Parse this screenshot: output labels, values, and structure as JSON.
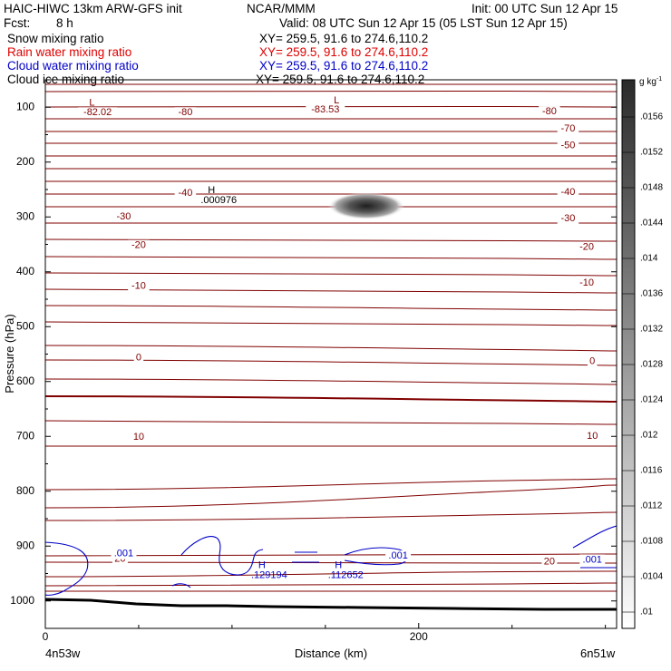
{
  "header": {
    "title": "HAIC-HIWC 13km ARW-GFS init",
    "org": "NCAR/MMM",
    "init": "Init: 00 UTC Sun 12 Apr 15",
    "fcst_label": "Fcst:",
    "fcst_value": "8 h",
    "valid": "Valid: 08 UTC Sun 12 Apr 15 (05 LST Sun 12 Apr 15)"
  },
  "fields": [
    {
      "name": "Snow mixing ratio",
      "xy": "XY= 259.5, 91.6 to 274.6,110.2",
      "color": "#000000"
    },
    {
      "name": "Rain water mixing ratio",
      "xy": "XY= 259.5, 91.6 to 274.6,110.2",
      "color": "#e00000"
    },
    {
      "name": "Cloud water mixing ratio",
      "xy": "XY= 259.5, 91.6 to 274.6,110.2",
      "color": "#0000c8"
    },
    {
      "name": "Cloud ice mixing ratio",
      "xy": "XY= 259.5, 91.6 to 274.6,110.2",
      "color": "#000000"
    }
  ],
  "chart_data": {
    "type": "contour cross-section",
    "xlabel": "Distance (km)",
    "ylabel": "Pressure (hPa)",
    "x_ticks": [
      "0",
      "200"
    ],
    "y_ticks": [
      "100",
      "200",
      "300",
      "400",
      "500",
      "600",
      "700",
      "800",
      "900",
      "1000"
    ],
    "xlim": [
      0,
      306
    ],
    "ylim": [
      1050,
      50
    ],
    "x_left_label": "4n53w",
    "x_right_label": "6n51w",
    "colorbar": {
      "unit": "g kg",
      "unit_exp": "-1",
      "ticks": [
        ".0156",
        ".0152",
        ".0148",
        ".0144",
        ".014",
        ".0136",
        ".0132",
        ".0128",
        ".0124",
        ".012",
        ".0116",
        ".0112",
        ".0108",
        ".0104",
        ".01"
      ]
    },
    "temperature_labels": [
      {
        "text": "-82.02",
        "x": 28,
        "p": 110
      },
      {
        "text": "-80",
        "x": 75,
        "p": 110
      },
      {
        "text": "-83.53",
        "x": 150,
        "p": 105
      },
      {
        "text": "-80",
        "x": 270,
        "p": 108
      },
      {
        "text": "-70",
        "x": 280,
        "p": 139
      },
      {
        "text": "-50",
        "x": 280,
        "p": 170
      },
      {
        "text": "-40",
        "x": 75,
        "p": 257
      },
      {
        "text": "-40",
        "x": 280,
        "p": 255
      },
      {
        "text": "-30",
        "x": 42,
        "p": 300
      },
      {
        "text": "-30",
        "x": 280,
        "p": 303
      },
      {
        "text": "-20",
        "x": 50,
        "p": 352
      },
      {
        "text": "-20",
        "x": 290,
        "p": 355
      },
      {
        "text": "-10",
        "x": 50,
        "p": 426
      },
      {
        "text": "-10",
        "x": 290,
        "p": 420
      },
      {
        "text": "0",
        "x": 50,
        "p": 557
      },
      {
        "text": "0",
        "x": 293,
        "p": 563
      },
      {
        "text": "10",
        "x": 50,
        "p": 701
      },
      {
        "text": "10",
        "x": 293,
        "p": 700
      },
      {
        "text": "20",
        "x": 40,
        "p": 924
      },
      {
        "text": "20",
        "x": 270,
        "p": 929
      }
    ],
    "extrema_labels": [
      {
        "symbol": "L",
        "value": "",
        "x": 25,
        "p": 92,
        "color": "#800000"
      },
      {
        "symbol": "L",
        "value": "",
        "x": 156,
        "p": 88,
        "color": "#800000"
      },
      {
        "symbol": "H",
        "value": ".000976",
        "x": 89,
        "p": 252,
        "color": "#000000"
      },
      {
        "symbol": "H",
        "value": ".129194",
        "x": 116,
        "p": 935,
        "color": "#0000c8"
      },
      {
        "symbol": "H",
        "value": ".112652",
        "x": 157,
        "p": 935,
        "color": "#0000c8"
      }
    ],
    "cloud_water_labels": [
      {
        "text": ".001",
        "x": 42,
        "p": 914
      },
      {
        "text": ".001",
        "x": 189,
        "p": 918
      },
      {
        "text": ".001",
        "x": 293,
        "p": 925
      }
    ],
    "ice_max_location": {
      "x": 172,
      "p": 280
    }
  }
}
